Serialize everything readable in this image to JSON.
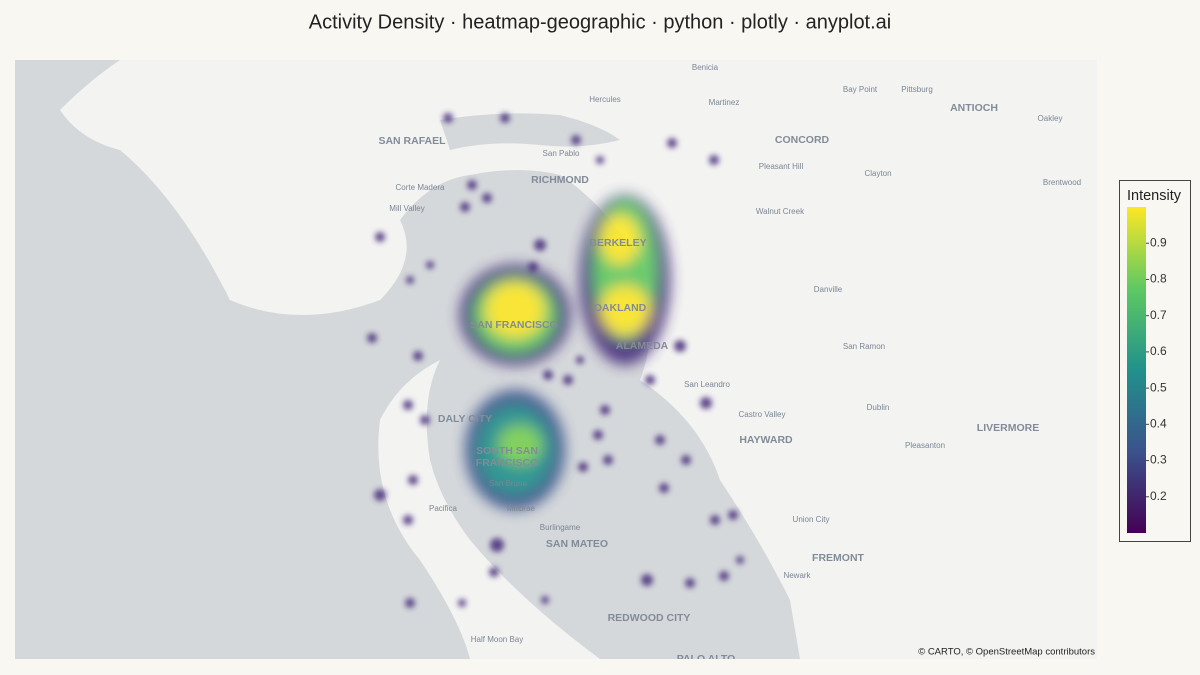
{
  "title": "Activity Density · heatmap-geographic · python · plotly · anyplot.ai",
  "map": {
    "labels": [
      "Benicia",
      "Hercules",
      "Martinez",
      "Bay Point",
      "Pittsburg",
      "ANTIOCH",
      "Oakley",
      "SAN RAFAEL",
      "CONCORD",
      "San Pablo",
      "Pleasant Hill",
      "Clayton",
      "RICHMOND",
      "Corte Madera",
      "Brentwood",
      "Mill Valley",
      "Walnut Creek",
      "BERKELEY",
      "Danville",
      "OAKLAND",
      "SAN FRANCISCO",
      "ALAMEDA",
      "San Ramon",
      "San Leandro",
      "Dublin",
      "Castro Valley",
      "DALY CITY",
      "LIVERMORE",
      "HAYWARD",
      "Pleasanton",
      "SOUTH SAN",
      "FRANCISCO",
      "San Bruno",
      "Pacifica",
      "Millbrae",
      "Union City",
      "Burlingame",
      "SAN MATEO",
      "FREMONT",
      "Newark",
      "REDWOOD CITY",
      "Half Moon Bay",
      "PALO ALTO"
    ],
    "attribution": "© CARTO, © OpenStreetMap contributors"
  },
  "colorbar": {
    "title": "Intensity",
    "range": [
      0.1,
      1.0
    ],
    "ticks": [
      0.2,
      0.3,
      0.4,
      0.5,
      0.6,
      0.7,
      0.8,
      0.9
    ]
  }
}
